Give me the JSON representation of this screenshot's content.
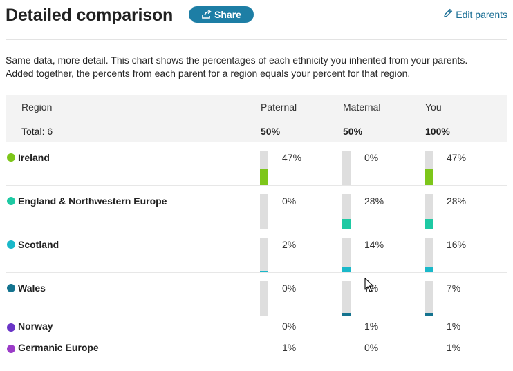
{
  "header": {
    "title": "Detailed comparison",
    "share_label": "Share",
    "edit_label": "Edit parents"
  },
  "description": {
    "line1": "Same data, more detail. This chart shows the percentages of each ethnicity you inherited from your parents.",
    "line2": "Added together, the percents from each parent for a region equals your percent for that region."
  },
  "table": {
    "headers": {
      "region": "Region",
      "paternal": "Paternal",
      "maternal": "Maternal",
      "you": "You"
    },
    "totals": {
      "label": "Total: 6",
      "paternal": "50%",
      "maternal": "50%",
      "you": "100%"
    },
    "rows": [
      {
        "name": "Ireland",
        "color": "#7dc61a",
        "paternal": "47%",
        "maternal": "0%",
        "you": "47%",
        "paternal_value": 47,
        "maternal_value": 0,
        "you_value": 47
      },
      {
        "name": "England & Northwestern Europe",
        "color": "#1ec9a3",
        "paternal": "0%",
        "maternal": "28%",
        "you": "28%",
        "paternal_value": 0,
        "maternal_value": 28,
        "you_value": 28
      },
      {
        "name": "Scotland",
        "color": "#1ab8c9",
        "paternal": "2%",
        "maternal": "14%",
        "you": "16%",
        "paternal_value": 2,
        "maternal_value": 14,
        "you_value": 16
      },
      {
        "name": "Wales",
        "color": "#14738f",
        "paternal": "0%",
        "maternal": "7%",
        "you": "7%",
        "paternal_value": 0,
        "maternal_value": 7,
        "you_value": 7
      },
      {
        "name": "Norway",
        "color": "#6a35c7",
        "paternal": "0%",
        "maternal": "1%",
        "you": "1%"
      },
      {
        "name": "Germanic Europe",
        "color": "#9b3cc8",
        "paternal": "1%",
        "maternal": "0%",
        "you": "1%"
      }
    ]
  },
  "icons": {
    "share": "share-icon",
    "edit": "pencil-icon",
    "cursor": "mouse-pointer-icon"
  }
}
